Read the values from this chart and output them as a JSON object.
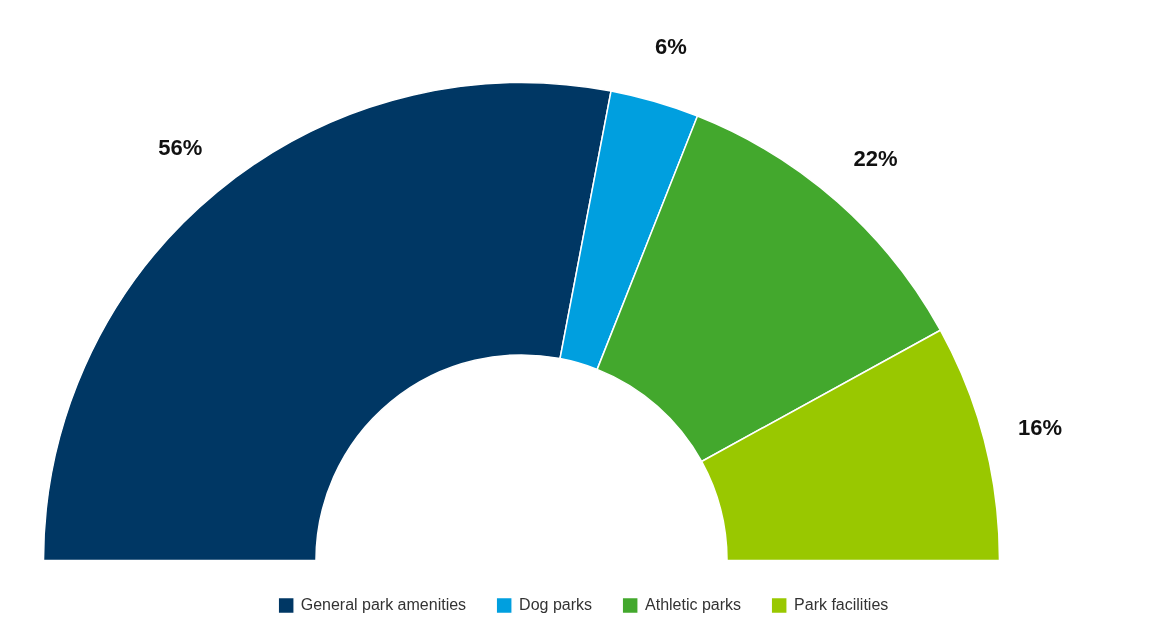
{
  "chart_data": {
    "type": "donut",
    "categories": [
      "General park amenities",
      "Dog parks",
      "Athletic parks",
      "Park facilities"
    ],
    "values": [
      56,
      6,
      22,
      16
    ],
    "value_labels": [
      "56%",
      "6%",
      "22%",
      "16%"
    ],
    "colors": [
      "#003764",
      "#009fdf",
      "#43a82d",
      "#99c800"
    ],
    "legend": "bottom"
  }
}
